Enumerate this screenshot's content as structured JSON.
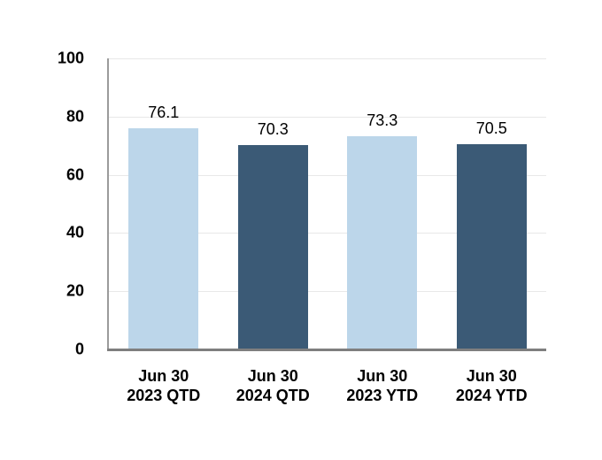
{
  "chart_data": {
    "type": "bar",
    "title": "",
    "xlabel": "",
    "ylabel": "",
    "categories": [
      "Jun 30\n2023 QTD",
      "Jun 30\n2024 QTD",
      "Jun 30\n2023 YTD",
      "Jun 30\n2024 YTD"
    ],
    "values": [
      76.1,
      70.3,
      73.3,
      70.5
    ],
    "value_labels": [
      "76.1",
      "70.3",
      "73.3",
      "70.5"
    ],
    "bar_colors": [
      "#bcd6ea",
      "#3b5a76",
      "#bcd6ea",
      "#3b5a76"
    ],
    "ylim": [
      0,
      100
    ],
    "yticks": [
      0,
      20,
      40,
      60,
      80,
      100
    ],
    "ytick_labels": [
      "0",
      "20",
      "40",
      "60",
      "80",
      "100"
    ],
    "grid": "horizontal",
    "legend": "none",
    "colors": {
      "light_blue": "#bcd6ea",
      "dark_blue": "#3b5a76",
      "axis_line": "#7f7f7f",
      "gridline": "#e8e8e8",
      "text": "#000000",
      "background": "#ffffff"
    }
  }
}
